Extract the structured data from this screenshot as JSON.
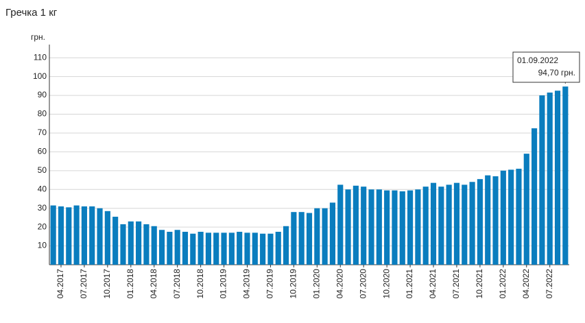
{
  "chart_data": {
    "type": "bar",
    "title": "Гречка 1 кг",
    "ylabel": "грн.",
    "categories": [
      null,
      "04.2017",
      null,
      null,
      "07.2017",
      null,
      null,
      "10.2017",
      null,
      null,
      "01.2018",
      null,
      null,
      "04.2018",
      null,
      null,
      "07.2018",
      null,
      null,
      "10.2018",
      null,
      null,
      "01.2019",
      null,
      null,
      "04.2019",
      null,
      null,
      "07.2019",
      null,
      null,
      "10.2019",
      null,
      null,
      "01.2020",
      null,
      null,
      "04.2020",
      null,
      null,
      "07.2020",
      null,
      null,
      "10.2020",
      null,
      null,
      "01.2021",
      null,
      null,
      "04.2021",
      null,
      null,
      "07.2021",
      null,
      null,
      "10.2021",
      null,
      null,
      "01.2022",
      null,
      null,
      "04.2022",
      null,
      null,
      "07.2022",
      null,
      null
    ],
    "values": [
      31.5,
      31,
      30.5,
      31.5,
      31,
      31,
      30,
      28.5,
      25.5,
      21.5,
      23,
      23,
      21.5,
      20.5,
      18.5,
      17.5,
      18.5,
      17.5,
      16.5,
      17.5,
      17,
      17,
      17,
      17,
      17.5,
      17,
      17,
      16.5,
      16.5,
      17.5,
      20.5,
      28,
      28,
      27.5,
      30,
      30,
      33,
      42.5,
      40,
      42,
      41.5,
      40,
      40,
      39.5,
      39.5,
      39,
      39.5,
      40,
      41.5,
      43.5,
      41.5,
      42.5,
      43.5,
      42.5,
      44,
      45.5,
      47.5,
      47,
      50,
      50.5,
      51,
      59,
      72.5,
      90,
      91.5,
      92.5,
      94.7
    ],
    "value_labels": [
      null,
      null,
      null,
      null,
      null,
      null,
      null,
      null,
      null,
      null,
      null,
      null,
      null,
      null,
      null,
      null,
      null,
      null,
      null,
      null,
      null,
      null,
      null,
      null,
      null,
      null,
      null,
      null,
      null,
      null,
      null,
      null,
      null,
      null,
      null,
      null,
      null,
      null,
      null,
      null,
      null,
      null,
      null,
      null,
      null,
      null,
      null,
      null,
      null,
      null,
      null,
      null,
      null,
      null,
      null,
      null,
      null,
      null,
      null,
      null,
      null,
      null,
      null,
      null,
      null,
      null,
      "94,70 грн."
    ],
    "tooltip_date": "01.09.2022",
    "color": "#0a7dbe",
    "ylim": [
      0,
      117
    ],
    "yticks": [
      10,
      20,
      30,
      40,
      50,
      60,
      70,
      80,
      90,
      100,
      110
    ],
    "grid": true
  }
}
